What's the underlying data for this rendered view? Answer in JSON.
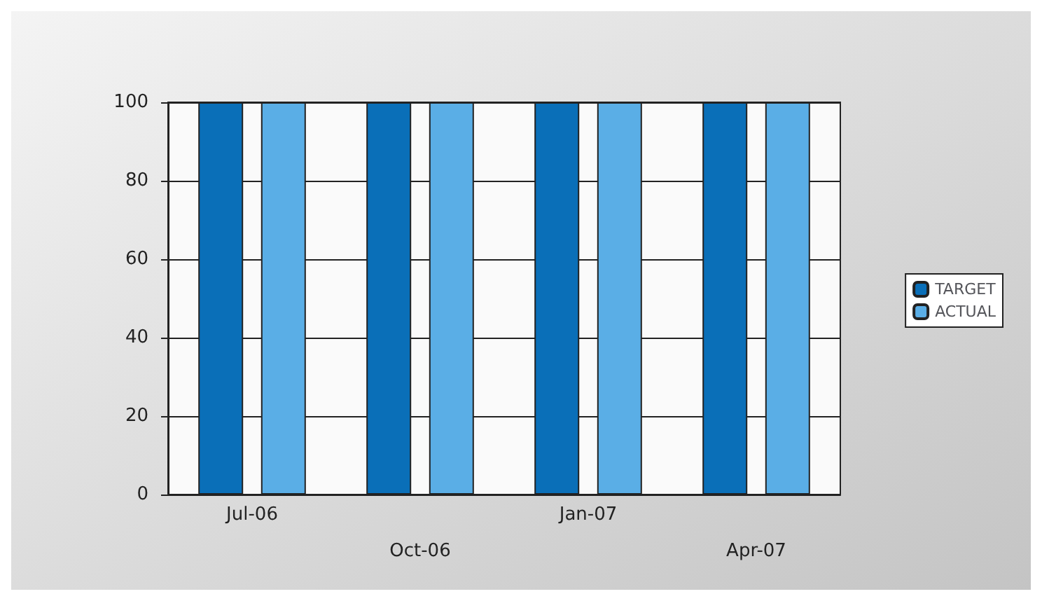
{
  "chart_data": {
    "type": "bar",
    "categories": [
      "Jul-06",
      "Oct-06",
      "Jan-07",
      "Apr-07"
    ],
    "series": [
      {
        "name": "TARGET",
        "color": "#0a6fb8",
        "values": [
          100,
          100,
          100,
          100
        ]
      },
      {
        "name": "ACTUAL",
        "color": "#5aaee6",
        "values": [
          100,
          100,
          100,
          100
        ]
      }
    ],
    "ylim": [
      0,
      100
    ],
    "yticks": [
      0,
      20,
      40,
      60,
      80,
      100
    ],
    "grid": "y",
    "legend": "right"
  }
}
